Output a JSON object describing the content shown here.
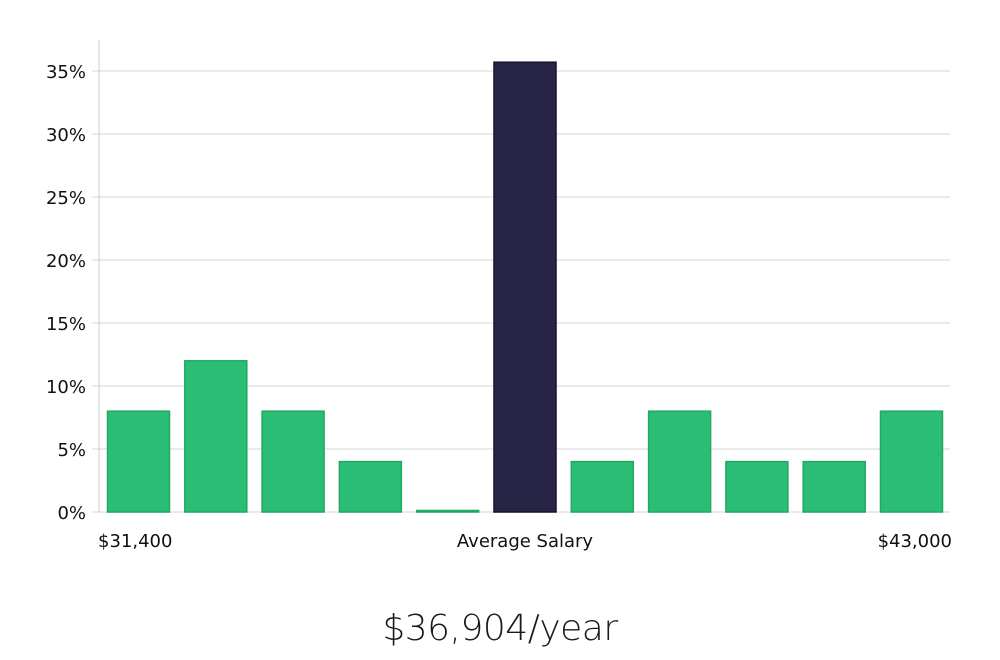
{
  "chart_data": {
    "type": "bar",
    "ylim": [
      0,
      35
    ],
    "y_ticks": [
      "0%",
      "5%",
      "10%",
      "15%",
      "20%",
      "25%",
      "30%",
      "35%"
    ],
    "y_tick_values": [
      0,
      5,
      10,
      15,
      20,
      25,
      30,
      35
    ],
    "values": [
      8,
      12,
      8,
      4,
      0,
      35.7,
      4,
      8,
      4,
      4,
      8
    ],
    "highlight_index": 5,
    "x_labels": {
      "left": "$31,400",
      "center": "Average Salary",
      "right": "$43,000"
    },
    "grid": true
  },
  "colors": {
    "bar": "#2bbd74",
    "bar_edge": "#22a862",
    "highlight": "#282445",
    "grid": "#e3e3e3",
    "axis": "#cccccc"
  },
  "headline": "$36,904/year"
}
